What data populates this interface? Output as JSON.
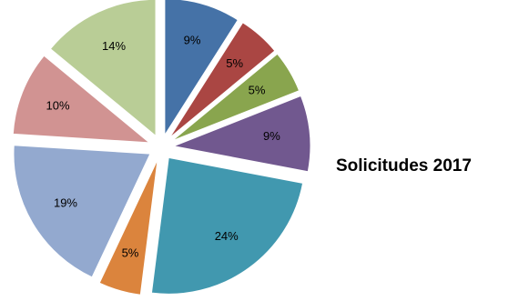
{
  "chart_data": {
    "type": "pie",
    "title": "Solicitudes 2017",
    "exploded": true,
    "legend": "none",
    "slices": [
      {
        "label": "9%",
        "value": 9,
        "color": "#4572A7"
      },
      {
        "label": "5%",
        "value": 5,
        "color": "#AA4643"
      },
      {
        "label": "5%",
        "value": 5,
        "color": "#89A54E"
      },
      {
        "label": "9%",
        "value": 9,
        "color": "#71588F"
      },
      {
        "label": "24%",
        "value": 24,
        "color": "#4198AF"
      },
      {
        "label": "5%",
        "value": 5,
        "color": "#DB843D"
      },
      {
        "label": "19%",
        "value": 19,
        "color": "#93A9CF"
      },
      {
        "label": "10%",
        "value": 10,
        "color": "#D19392"
      },
      {
        "label": "14%",
        "value": 14,
        "color": "#B9CD96"
      }
    ]
  }
}
